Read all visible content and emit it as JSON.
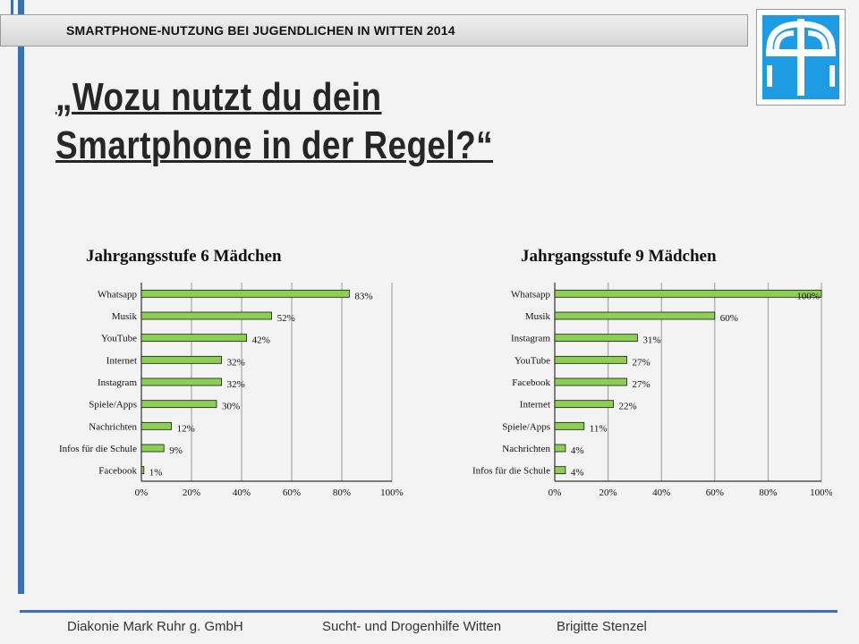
{
  "header": {
    "title": "SMARTPHONE-NUTZUNG BEI JUGENDLICHEN IN WITTEN 2014"
  },
  "slide": {
    "title": "„Wozu nutzt du dein Smartphone in der Regel?“"
  },
  "colors": {
    "accent": "#3b6fb6",
    "bar_fill": "#8ccf52",
    "bar_stroke": "#1a1a1a",
    "logo_blue": "#1d9be3"
  },
  "logo": {
    "icon": "diakonie-cross-logo"
  },
  "chart_data": [
    {
      "type": "bar",
      "orientation": "horizontal",
      "title": "Jahrgangsstufe 6 Mädchen",
      "categories": [
        "Whatsapp",
        "Musik",
        "YouTube",
        "Internet",
        "Instagram",
        "Spiele/Apps",
        "Nachrichten",
        "Infos für die Schule",
        "Facebook"
      ],
      "values": [
        83,
        52,
        42,
        32,
        32,
        30,
        12,
        9,
        1
      ],
      "value_labels": [
        "83%",
        "52%",
        "42%",
        "32%",
        "32%",
        "30%",
        "12%",
        "9%",
        "1%"
      ],
      "xlim": [
        0,
        100
      ],
      "ticks": [
        "0%",
        "20%",
        "40%",
        "60%",
        "80%",
        "100%"
      ],
      "grid": true
    },
    {
      "type": "bar",
      "orientation": "horizontal",
      "title": "Jahrgangsstufe 9 Mädchen",
      "categories": [
        "Whatsapp",
        "Musik",
        "Instagram",
        "YouTube",
        "Facebook",
        "Internet",
        "Spiele/Apps",
        "Nachrichten",
        "Infos für die Schule"
      ],
      "values": [
        100,
        60,
        31,
        27,
        27,
        22,
        11,
        4,
        4
      ],
      "value_labels": [
        "100%",
        "60%",
        "31%",
        "27%",
        "27%",
        "22%",
        "11%",
        "4%",
        "4%"
      ],
      "xlim": [
        0,
        100
      ],
      "ticks": [
        "0%",
        "20%",
        "40%",
        "60%",
        "80%",
        "100%"
      ],
      "grid": true
    }
  ],
  "footer": {
    "org": "Diakonie Mark Ruhr g. GmbH",
    "dept": "Sucht- und Drogenhilfe Witten",
    "author": "Brigitte Stenzel"
  }
}
